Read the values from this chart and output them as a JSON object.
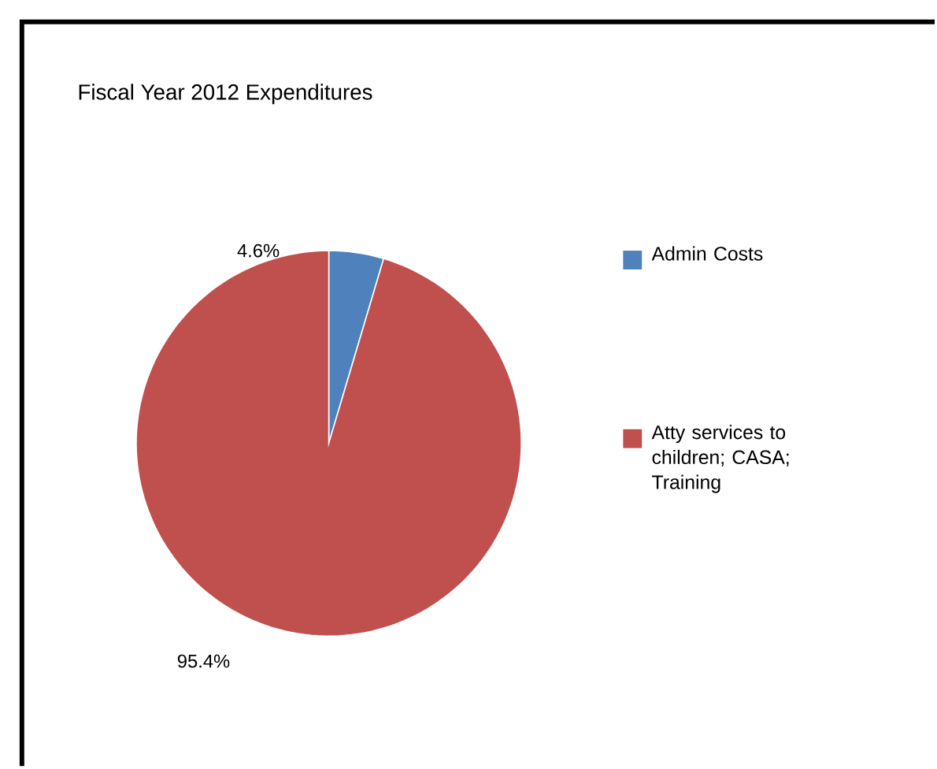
{
  "chart_data": {
    "type": "pie",
    "title": "Fiscal Year 2012 Expenditures",
    "categories": [
      "Admin Costs",
      "Atty services to children; CASA; Training"
    ],
    "values": [
      4.6,
      95.4
    ],
    "colors": [
      "#4f81bd",
      "#c0504d"
    ],
    "value_labels": [
      "4.6%",
      "95.4%"
    ],
    "legend": "right"
  }
}
